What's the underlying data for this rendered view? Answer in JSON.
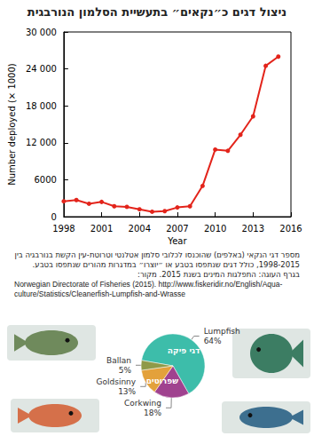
{
  "title": "ניצול דגים כ״נקאים״ בתעשיית הסלמון הנורבגית",
  "chart_data": [
    {
      "type": "line",
      "x": [
        1998,
        1999,
        2000,
        2001,
        2002,
        2003,
        2004,
        2005,
        2006,
        2007,
        2008,
        2009,
        2010,
        2011,
        2012,
        2013,
        2014,
        2015
      ],
      "values": [
        2500,
        2700,
        2100,
        2400,
        1700,
        1600,
        1200,
        800,
        900,
        1500,
        1700,
        5000,
        10900,
        10700,
        13300,
        16300,
        24500,
        26000
      ],
      "color": "#e3241b",
      "marker": "circle",
      "xlabel": "Year",
      "ylabel": "Number deployed (× 1000)",
      "xlim": [
        1998,
        2016
      ],
      "xticks": [
        1998,
        2001,
        2004,
        2007,
        2010,
        2013,
        2016
      ],
      "ylim": [
        0,
        30000
      ],
      "yticks": [
        0,
        6000,
        {
          "value": 12000,
          "label": "12 000"
        },
        {
          "value": 18000,
          "label": "18 000"
        },
        {
          "value": 24000,
          "label": "24 000"
        },
        {
          "value": 30000,
          "label": "30 000"
        }
      ],
      "grid": false
    },
    {
      "type": "pie",
      "categories": [
        "Lumpfish",
        "Corkwing",
        "Goldsinny",
        "Ballan"
      ],
      "values": [
        64,
        18,
        13,
        5
      ],
      "value_labels": [
        "64%",
        "18%",
        "13%",
        "5%"
      ],
      "colors": [
        "#3dbdaa",
        "#a0428f",
        "#e3a13b",
        "#8f9a48"
      ],
      "data_labels": true,
      "groups": [
        {
          "label": "דגי פיקה",
          "members": [
            "Lumpfish"
          ]
        },
        {
          "label": "שפרוטים",
          "members": [
            "Corkwing",
            "Goldsinny",
            "Ballan"
          ]
        }
      ]
    }
  ],
  "caption": [
    "מספר דגי הנקאי (באלפים) שהוכנסו לכלובי סלמון אטלנטי וטרוטת-עין הקשת בנורבגיה בין 1998-2015, כולל דגים שנתפסו בטבע או ״יוצרו״ במדגרות מהורים שנתפסו בטבע.",
    "בגרף העוגה: התפלגות המינים בשנת 2015. מקור:"
  ],
  "source": "Norwegian Directorate of Fisheries (2015). http://www.fiskeridir.no/English/Aqua-culture/Statistics/Cleanerfish-Lumpfish-and-Wrasse"
}
